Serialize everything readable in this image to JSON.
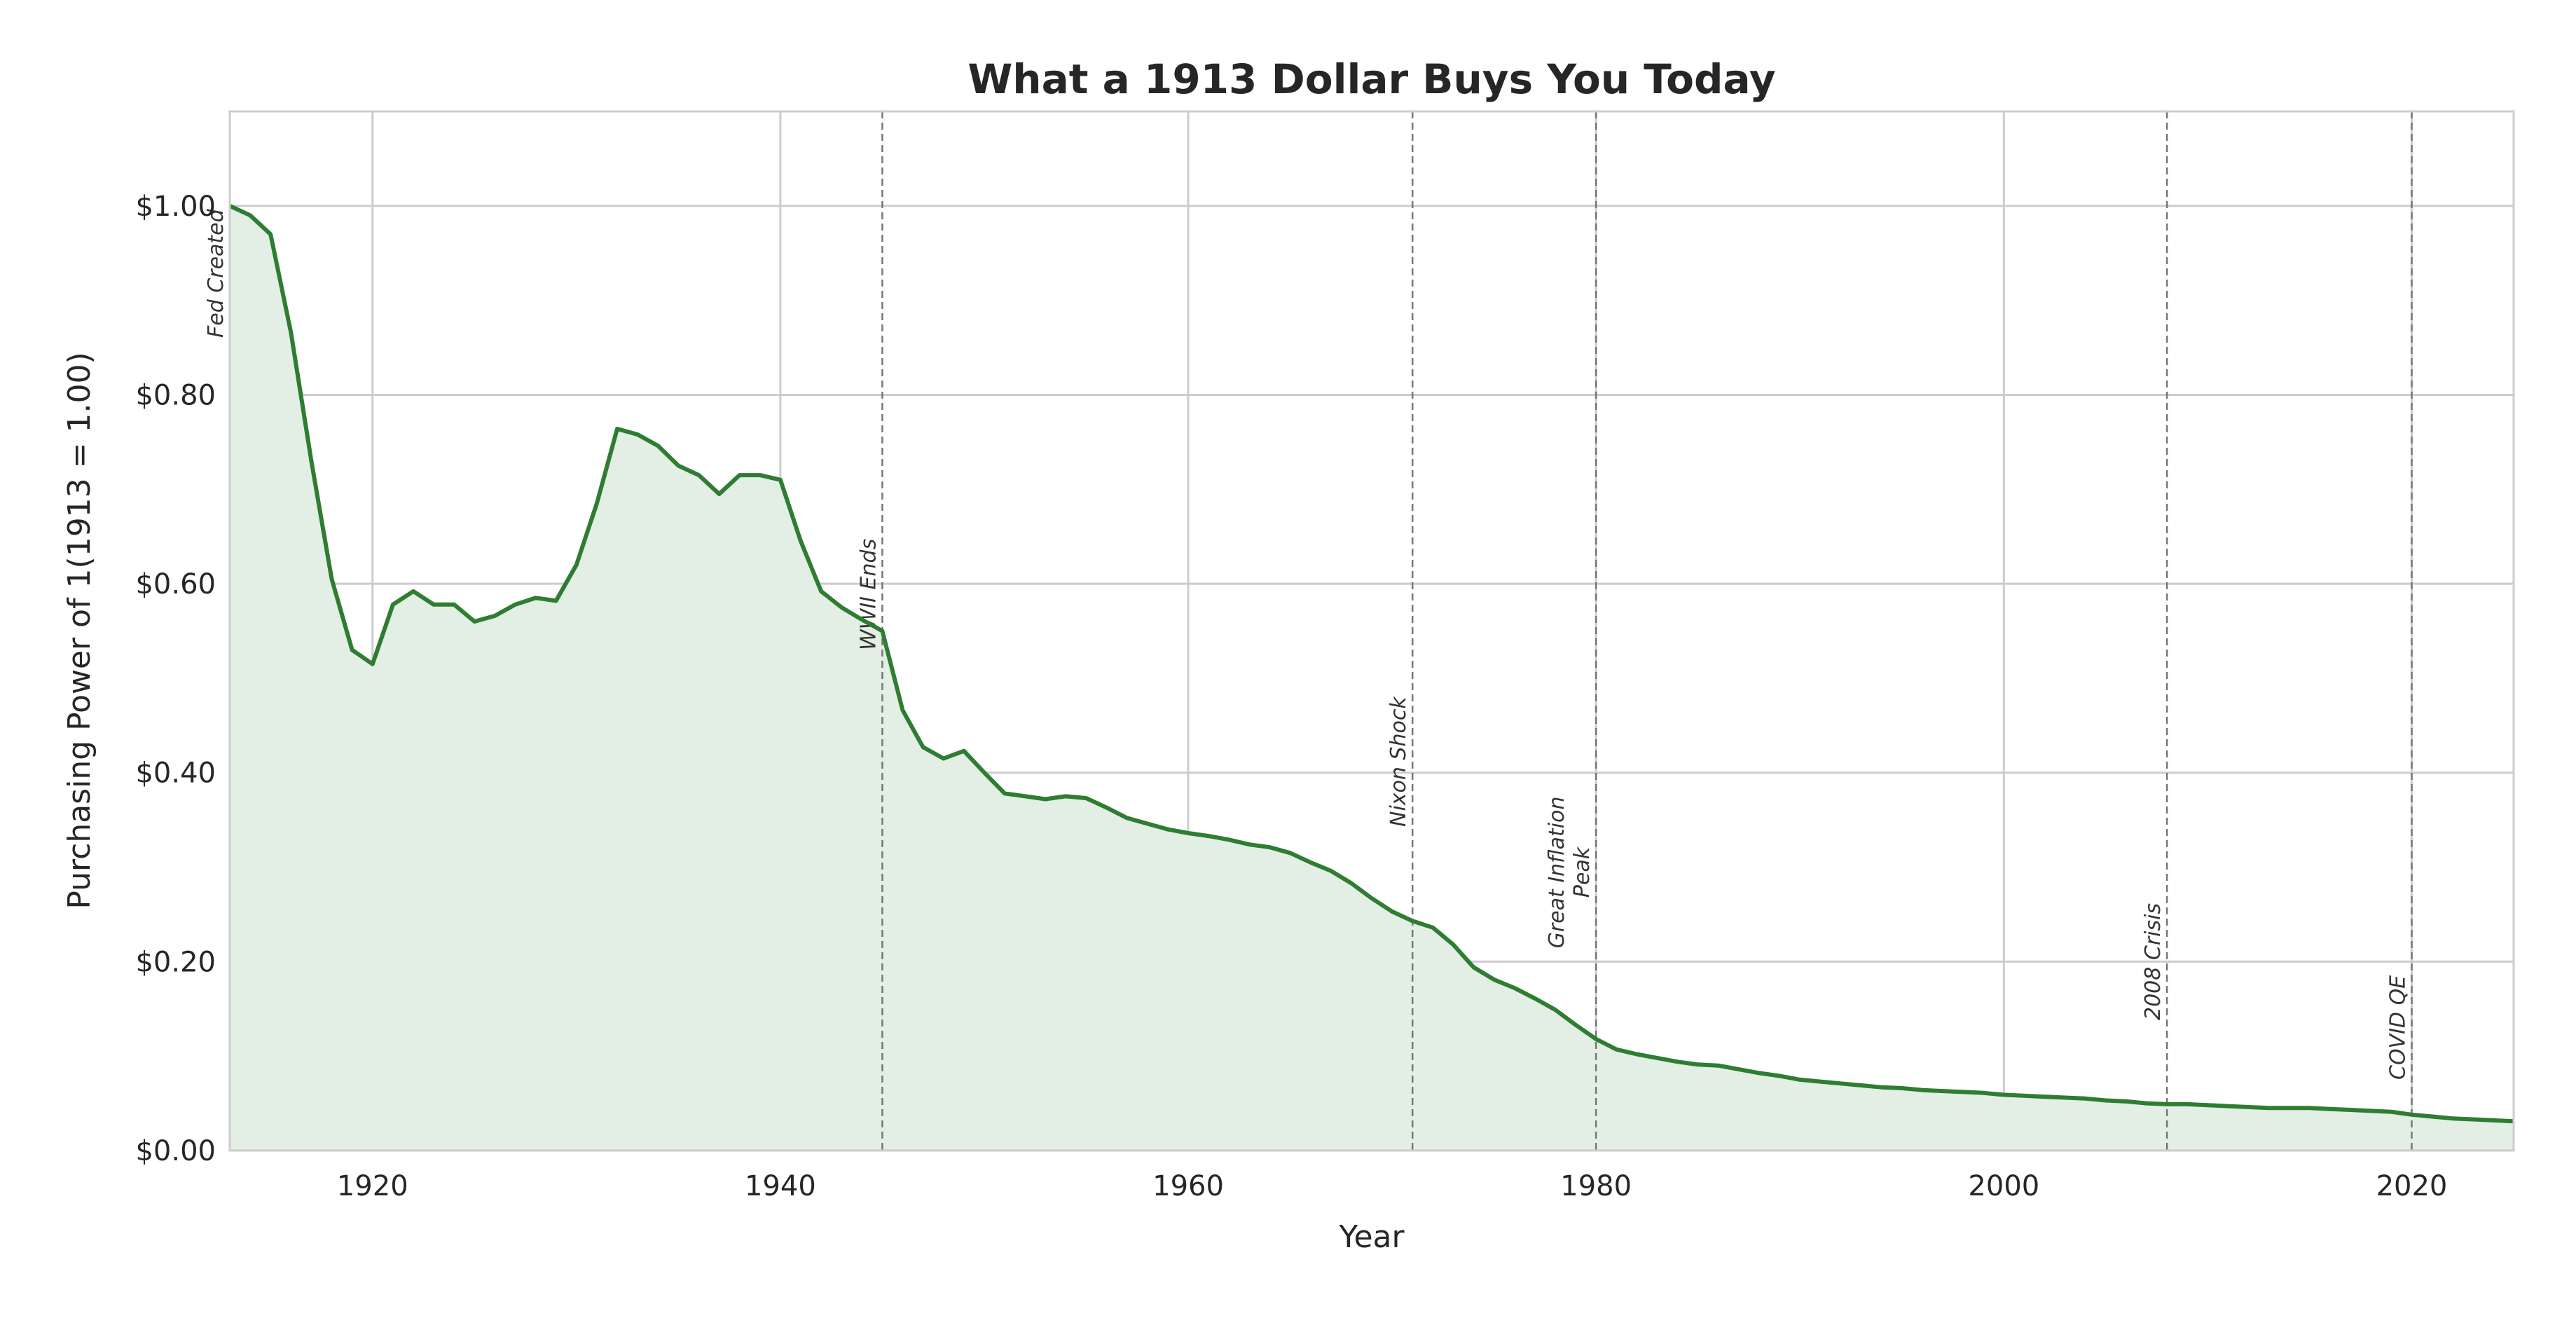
{
  "chart_data": {
    "type": "area",
    "title": "What a 1913 Dollar Buys You Today",
    "xlabel": "Year",
    "ylabel": "Purchasing Power of 1(1913 = 1.00)",
    "xlim": [
      1913,
      2025
    ],
    "ylim": [
      0,
      1.1
    ],
    "grid": true,
    "line_color": "#2e7d32",
    "fill_color": "#e3eee4",
    "x_ticks": [
      1920,
      1940,
      1960,
      1980,
      2000,
      2020
    ],
    "y_ticks": [
      0,
      0.2,
      0.4,
      0.6,
      0.8,
      1.0
    ],
    "y_tick_labels": [
      "$0.00",
      "$0.20",
      "$0.40",
      "$0.60",
      "$0.80",
      "$1.00"
    ],
    "x": [
      1913,
      1914,
      1915,
      1916,
      1917,
      1918,
      1919,
      1920,
      1921,
      1922,
      1923,
      1924,
      1925,
      1926,
      1927,
      1928,
      1929,
      1930,
      1931,
      1932,
      1933,
      1934,
      1935,
      1936,
      1937,
      1938,
      1939,
      1940,
      1941,
      1942,
      1943,
      1944,
      1945,
      1946,
      1947,
      1948,
      1949,
      1950,
      1951,
      1952,
      1953,
      1954,
      1955,
      1956,
      1957,
      1958,
      1959,
      1960,
      1961,
      1962,
      1963,
      1964,
      1965,
      1966,
      1967,
      1968,
      1969,
      1970,
      1971,
      1972,
      1973,
      1974,
      1975,
      1976,
      1977,
      1978,
      1979,
      1980,
      1981,
      1982,
      1983,
      1984,
      1985,
      1986,
      1987,
      1988,
      1989,
      1990,
      1991,
      1992,
      1993,
      1994,
      1995,
      1996,
      1997,
      1998,
      1999,
      2000,
      2001,
      2002,
      2003,
      2004,
      2005,
      2006,
      2007,
      2008,
      2009,
      2010,
      2011,
      2012,
      2013,
      2014,
      2015,
      2016,
      2017,
      2018,
      2019,
      2020,
      2021,
      2022,
      2023,
      2024,
      2025
    ],
    "values": [
      1.0,
      0.99,
      0.97,
      0.866,
      0.73,
      0.605,
      0.53,
      0.515,
      0.578,
      0.592,
      0.578,
      0.578,
      0.56,
      0.566,
      0.578,
      0.585,
      0.582,
      0.62,
      0.685,
      0.764,
      0.758,
      0.746,
      0.725,
      0.715,
      0.695,
      0.715,
      0.715,
      0.71,
      0.645,
      0.592,
      0.575,
      0.562,
      0.55,
      0.466,
      0.427,
      0.415,
      0.423,
      0.4,
      0.378,
      0.375,
      0.372,
      0.375,
      0.373,
      0.363,
      0.352,
      0.346,
      0.34,
      0.336,
      0.333,
      0.329,
      0.324,
      0.321,
      0.315,
      0.305,
      0.296,
      0.283,
      0.267,
      0.253,
      0.243,
      0.236,
      0.218,
      0.194,
      0.181,
      0.172,
      0.161,
      0.149,
      0.133,
      0.118,
      0.107,
      0.102,
      0.098,
      0.094,
      0.091,
      0.09,
      0.086,
      0.082,
      0.079,
      0.075,
      0.073,
      0.071,
      0.069,
      0.067,
      0.066,
      0.064,
      0.063,
      0.062,
      0.061,
      0.059,
      0.058,
      0.057,
      0.056,
      0.055,
      0.053,
      0.052,
      0.05,
      0.049,
      0.049,
      0.048,
      0.047,
      0.046,
      0.045,
      0.045,
      0.045,
      0.044,
      0.043,
      0.042,
      0.041,
      0.038,
      0.036,
      0.034,
      0.033,
      0.032,
      0.031
    ],
    "events": [
      {
        "year": 1913,
        "label": "Fed Created"
      },
      {
        "year": 1945,
        "label": "WWII Ends"
      },
      {
        "year": 1971,
        "label": "Nixon Shock"
      },
      {
        "year": 1980,
        "label": "Great Inflation Peak"
      },
      {
        "year": 2008,
        "label": "2008 Crisis"
      },
      {
        "year": 2020,
        "label": "COVID QE"
      }
    ]
  }
}
